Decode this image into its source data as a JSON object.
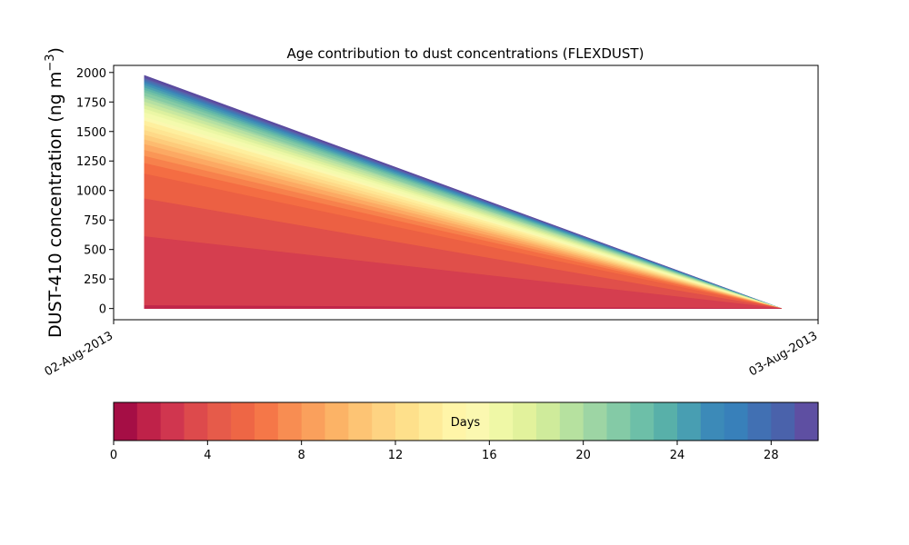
{
  "chart_data": {
    "type": "area",
    "title": "Age contribution to dust concentrations (FLEXDUST)",
    "ylabel_main": "DUST-410 concentration (ng m",
    "ylabel_exp": "−3",
    "ylabel_close": ")",
    "xlabel": "",
    "x_ticks": [
      "02-Aug-2013",
      "03-Aug-2013"
    ],
    "x_data": [
      "2013-08-02 01:03",
      "2013-08-02 22:45"
    ],
    "xlim": [
      "2013-08-02 00:00",
      "2013-08-03 00:00"
    ],
    "y_ticks": [
      "0",
      "250",
      "500",
      "750",
      "1000",
      "1250",
      "1500",
      "1750",
      "2000"
    ],
    "ylim": [
      -95,
      2060
    ],
    "stacked": true,
    "total_start": 1975,
    "total_end": 0,
    "cumulative_start_by_age_day": [
      25,
      610,
      930,
      1140,
      1230,
      1290,
      1340,
      1390,
      1430,
      1470,
      1510,
      1550,
      1590,
      1620,
      1660,
      1690,
      1720,
      1750,
      1780,
      1800,
      1830,
      1850,
      1870,
      1890,
      1910,
      1925,
      1940,
      1950,
      1962,
      1975
    ],
    "series_colors": [
      "#c0264a",
      "#d53e4f",
      "#e04f4a",
      "#ec6043",
      "#f46d43",
      "#f7814c",
      "#fa9656",
      "#fca963",
      "#fdbb6f",
      "#fdcb7b",
      "#fed988",
      "#fee593",
      "#feef9e",
      "#fbf8b0",
      "#f4faad",
      "#ebf7a5",
      "#dcf09e",
      "#c9e89f",
      "#b5e0a2",
      "#9dd5a4",
      "#86cba4",
      "#72c1a5",
      "#5fb5a9",
      "#4ea3b0",
      "#4192b6",
      "#3d80b7",
      "#4a6fb0",
      "#5862aa",
      "#5e4fa2",
      "#5a4a9e"
    ],
    "grid": false,
    "legend": "none",
    "colorbar": {
      "label": "Days",
      "range": [
        0,
        30
      ],
      "ticks": [
        "0",
        "4",
        "8",
        "12",
        "16",
        "20",
        "24",
        "28"
      ],
      "tick_values": [
        0,
        4,
        8,
        12,
        16,
        20,
        24,
        28
      ],
      "colors": [
        "#a50e45",
        "#bf2249",
        "#d0364f",
        "#dd4a4c",
        "#e65b4a",
        "#ee6645",
        "#f57748",
        "#f88d52",
        "#faa05c",
        "#fcb366",
        "#fdc474",
        "#fed382",
        "#fee08b",
        "#feeb99",
        "#fff5a8",
        "#fbf8b0",
        "#eff8a6",
        "#e2f29c",
        "#cfeb9b",
        "#b6e19f",
        "#9dd5a4",
        "#84caa6",
        "#6dbfa8",
        "#58b0a9",
        "#489eb2",
        "#3c8ab8",
        "#3880ba",
        "#4170b3",
        "#4a62ab",
        "#5e4fa2"
      ]
    }
  }
}
